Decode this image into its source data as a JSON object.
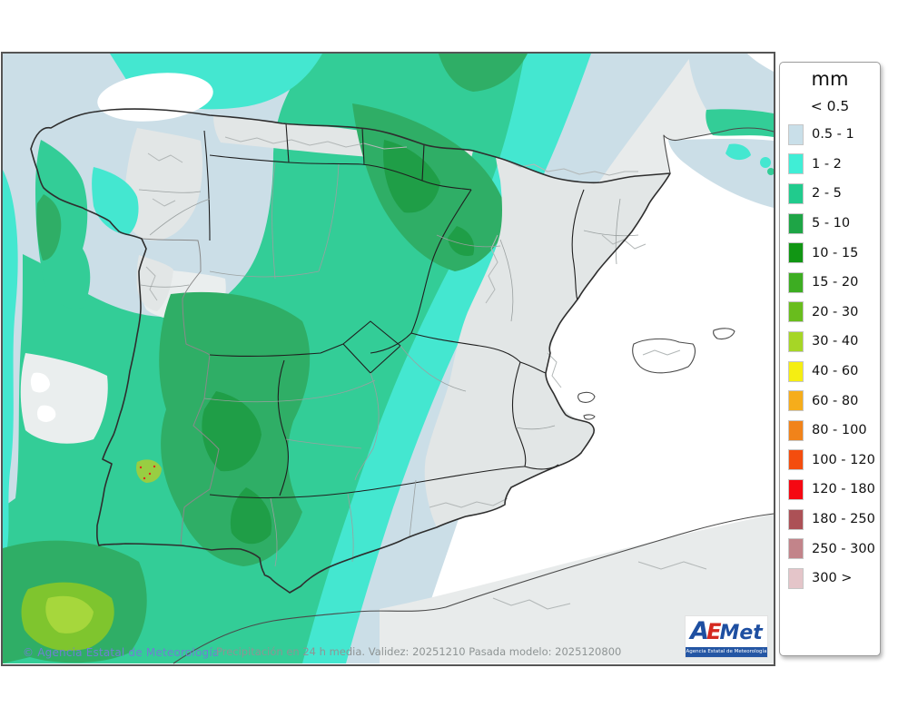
{
  "map": {
    "footer_copyright": "© Agencia Estatal de Meteorología",
    "footer_info": "Precipitación en 24 h media. Validez: 20251210 Pasada modelo: 2025120800",
    "copyright_color": "#6f7fd2"
  },
  "legend": {
    "title": "mm",
    "no_data_label": "< 0.5",
    "entries": [
      {
        "range": "0.5 - 1",
        "color": "#c9dfe9"
      },
      {
        "range": "1 - 2",
        "color": "#40eed6"
      },
      {
        "range": "2 - 5",
        "color": "#21cb8d"
      },
      {
        "range": "5 - 10",
        "color": "#1ea546"
      },
      {
        "range": "10 - 15",
        "color": "#119614"
      },
      {
        "range": "15 - 20",
        "color": "#3dad22"
      },
      {
        "range": "20 - 30",
        "color": "#69bd1d"
      },
      {
        "range": "30 - 40",
        "color": "#a6d626"
      },
      {
        "range": "40 - 60",
        "color": "#f5ee12"
      },
      {
        "range": "60 - 80",
        "color": "#f6ad1b"
      },
      {
        "range": "80 - 100",
        "color": "#f1831a"
      },
      {
        "range": "100 - 120",
        "color": "#f44d0e"
      },
      {
        "range": "120 - 180",
        "color": "#f50812"
      },
      {
        "range": "180 - 250",
        "color": "#ac5156"
      },
      {
        "range": "250 - 300",
        "color": "#c2848a"
      },
      {
        "range": "300 >",
        "color": "#e4c5c9"
      }
    ]
  },
  "logo": {
    "part_a": "A",
    "part_e": "E",
    "part_met": "Met",
    "subtitle": "Agencia Estatal de Meteorología"
  },
  "map_colors": {
    "land": "#e8ebeb",
    "terrain": "#e2e6e6",
    "pale_patch": "#eaeeee",
    "p0_5_1": "#cbdee7",
    "p1_2": "#44e7d0",
    "p2_5": "#33cd97",
    "p5_10": "#2fae66",
    "p10_15": "#1f9e47",
    "p20_30": "#7fc52e",
    "p30_40": "#a6d73c",
    "huelva_spot": "#98ce42",
    "station_dot": "#dd2b1b"
  }
}
